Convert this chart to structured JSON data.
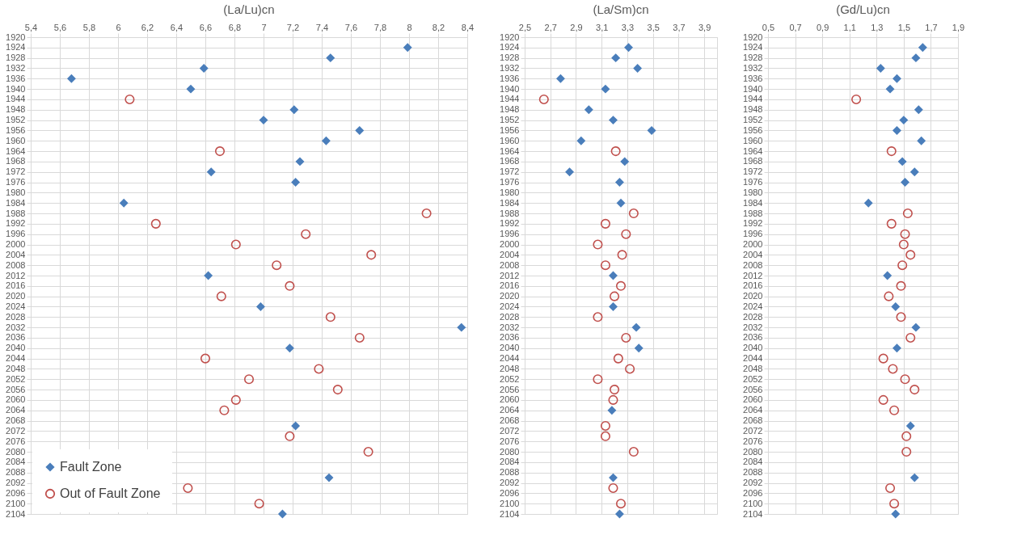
{
  "chart_data": [
    {
      "type": "scatter",
      "title": "(La/Lu)cn",
      "legend": "bottom left",
      "grid": true,
      "xlim": [
        5.4,
        8.4
      ],
      "xticks": [
        {
          "value": 5.4,
          "label": "5,4"
        },
        {
          "value": 5.6,
          "label": "5,6"
        },
        {
          "value": 5.8,
          "label": "5,8"
        },
        6,
        {
          "value": 6.2,
          "label": "6,2"
        },
        {
          "value": 6.4,
          "label": "6,4"
        },
        {
          "value": 6.6,
          "label": "6,6"
        },
        {
          "value": 6.8,
          "label": "6,8"
        },
        7,
        {
          "value": 7.2,
          "label": "7,2"
        },
        {
          "value": 7.4,
          "label": "7,4"
        },
        {
          "value": 7.6,
          "label": "7,6"
        },
        {
          "value": 7.8,
          "label": "7,8"
        },
        8,
        {
          "value": 8.2,
          "label": "8,2"
        },
        {
          "value": 8.4,
          "label": "8,4"
        }
      ],
      "ylim": [
        2104,
        1920
      ],
      "yticks": [
        1920,
        1924,
        1928,
        1932,
        1936,
        1940,
        1944,
        1948,
        1952,
        1956,
        1960,
        1964,
        1968,
        1972,
        1976,
        1980,
        1984,
        1988,
        1992,
        1996,
        2000,
        2004,
        2008,
        2012,
        2016,
        2020,
        2024,
        2028,
        2032,
        2036,
        2040,
        2044,
        2048,
        2052,
        2056,
        2060,
        2064,
        2068,
        2072,
        2076,
        2080,
        2084,
        2088,
        2092,
        2096,
        2100,
        2104
      ],
      "series": [
        {
          "name": "Fault Zone",
          "color": "#4a7ebb",
          "marker": "diamond",
          "x": [
            7.99,
            7.46,
            6.59,
            5.68,
            6.5,
            7.21,
            7.0,
            7.66,
            7.43,
            7.25,
            6.64,
            7.22,
            6.04,
            6.62,
            6.98,
            8.36,
            7.18,
            7.22,
            7.45,
            7.13
          ],
          "values": [
            1924,
            1928,
            1932,
            1936,
            1940,
            1948,
            1952,
            1956,
            1960,
            1968,
            1972,
            1976,
            1984,
            2012,
            2024,
            2032,
            2040,
            2070,
            2090,
            2104
          ]
        },
        {
          "name": "Out of Fault Zone",
          "color": "#c0504d",
          "marker": "circle",
          "x": [
            6.08,
            6.7,
            8.12,
            6.26,
            7.29,
            6.81,
            7.74,
            7.09,
            7.18,
            6.71,
            7.46,
            7.66,
            6.6,
            7.38,
            6.9,
            7.51,
            6.81,
            6.73,
            7.18,
            7.72,
            6.48,
            6.97
          ],
          "values": [
            1944,
            1964,
            1988,
            1992,
            1996,
            2000,
            2004,
            2008,
            2016,
            2020,
            2028,
            2036,
            2044,
            2048,
            2052,
            2056,
            2060,
            2064,
            2074,
            2080,
            2094,
            2100
          ]
        }
      ]
    },
    {
      "type": "scatter",
      "title": "(La/Sm)cn",
      "grid": true,
      "xlim": [
        2.5,
        4.0
      ],
      "xticks": [
        {
          "value": 2.5,
          "label": "2,5"
        },
        {
          "value": 2.7,
          "label": "2,7"
        },
        {
          "value": 2.9,
          "label": "2,9"
        },
        {
          "value": 3.1,
          "label": "3,1"
        },
        {
          "value": 3.3,
          "label": "3,3"
        },
        {
          "value": 3.5,
          "label": "3,5"
        },
        {
          "value": 3.7,
          "label": "3,7"
        },
        {
          "value": 3.9,
          "label": "3,9"
        }
      ],
      "ylim": [
        2104,
        1920
      ],
      "yticks": [
        1920,
        1924,
        1928,
        1932,
        1936,
        1940,
        1944,
        1948,
        1952,
        1956,
        1960,
        1964,
        1968,
        1972,
        1976,
        1980,
        1984,
        1988,
        1992,
        1996,
        2000,
        2004,
        2008,
        2012,
        2016,
        2020,
        2024,
        2028,
        2032,
        2036,
        2040,
        2044,
        2048,
        2052,
        2056,
        2060,
        2064,
        2068,
        2072,
        2076,
        2080,
        2084,
        2088,
        2092,
        2096,
        2100,
        2104
      ],
      "series": [
        {
          "color": "#4a7ebb",
          "marker": "diamond",
          "x": [
            3.31,
            3.21,
            3.38,
            2.78,
            3.13,
            3.0,
            3.19,
            3.49,
            2.94,
            3.28,
            2.85,
            3.24,
            3.25,
            3.19,
            3.19,
            3.37,
            3.39,
            3.18,
            3.19,
            3.24
          ],
          "values": [
            1924,
            1928,
            1932,
            1936,
            1940,
            1948,
            1952,
            1956,
            1960,
            1968,
            1972,
            1976,
            1984,
            2012,
            2024,
            2032,
            2040,
            2064,
            2090,
            2104
          ]
        },
        {
          "color": "#c0504d",
          "marker": "circle",
          "x": [
            2.65,
            3.21,
            3.35,
            3.13,
            3.29,
            3.07,
            3.26,
            3.13,
            3.25,
            3.2,
            3.07,
            3.29,
            3.23,
            3.32,
            3.07,
            3.2,
            3.19,
            3.13,
            3.13,
            3.35,
            3.19,
            3.25
          ],
          "values": [
            1944,
            1964,
            1988,
            1992,
            1996,
            2000,
            2004,
            2008,
            2016,
            2020,
            2028,
            2036,
            2044,
            2048,
            2052,
            2056,
            2060,
            2070,
            2074,
            2080,
            2094,
            2100
          ]
        }
      ]
    },
    {
      "type": "scatter",
      "title": "(Gd/Lu)cn",
      "grid": true,
      "xlim": [
        0.5,
        1.9
      ],
      "xticks": [
        {
          "value": 0.5,
          "label": "0,5"
        },
        {
          "value": 0.7,
          "label": "0,7"
        },
        {
          "value": 0.9,
          "label": "0,9"
        },
        {
          "value": 1.1,
          "label": "1,1"
        },
        {
          "value": 1.3,
          "label": "1,3"
        },
        {
          "value": 1.5,
          "label": "1,5"
        },
        {
          "value": 1.7,
          "label": "1,7"
        },
        {
          "value": 1.9,
          "label": "1,9"
        }
      ],
      "ylim": [
        2104,
        1920
      ],
      "yticks": [
        1920,
        1924,
        1928,
        1932,
        1936,
        1940,
        1944,
        1948,
        1952,
        1956,
        1960,
        1964,
        1968,
        1972,
        1976,
        1980,
        1984,
        1988,
        1992,
        1996,
        2000,
        2004,
        2008,
        2012,
        2016,
        2020,
        2024,
        2028,
        2032,
        2036,
        2040,
        2044,
        2048,
        2052,
        2056,
        2060,
        2064,
        2068,
        2072,
        2076,
        2080,
        2084,
        2088,
        2092,
        2096,
        2100,
        2104
      ],
      "series": [
        {
          "color": "#4a7ebb",
          "marker": "diamond",
          "x": [
            1.64,
            1.59,
            1.33,
            1.45,
            1.4,
            1.61,
            1.5,
            1.45,
            1.63,
            1.49,
            1.58,
            1.51,
            1.24,
            1.38,
            1.44,
            1.59,
            1.45,
            1.55,
            1.58,
            1.44
          ],
          "values": [
            1924,
            1928,
            1932,
            1936,
            1940,
            1948,
            1952,
            1956,
            1960,
            1968,
            1972,
            1976,
            1984,
            2012,
            2024,
            2032,
            2040,
            2070,
            2090,
            2104
          ]
        },
        {
          "color": "#c0504d",
          "marker": "circle",
          "x": [
            1.15,
            1.41,
            1.53,
            1.41,
            1.51,
            1.5,
            1.55,
            1.49,
            1.48,
            1.39,
            1.48,
            1.55,
            1.35,
            1.42,
            1.51,
            1.58,
            1.35,
            1.43,
            1.52,
            1.52,
            1.4,
            1.43
          ],
          "values": [
            1944,
            1964,
            1988,
            1992,
            1996,
            2000,
            2004,
            2008,
            2016,
            2020,
            2028,
            2036,
            2044,
            2048,
            2052,
            2056,
            2060,
            2064,
            2074,
            2080,
            2094,
            2100
          ]
        }
      ]
    }
  ]
}
